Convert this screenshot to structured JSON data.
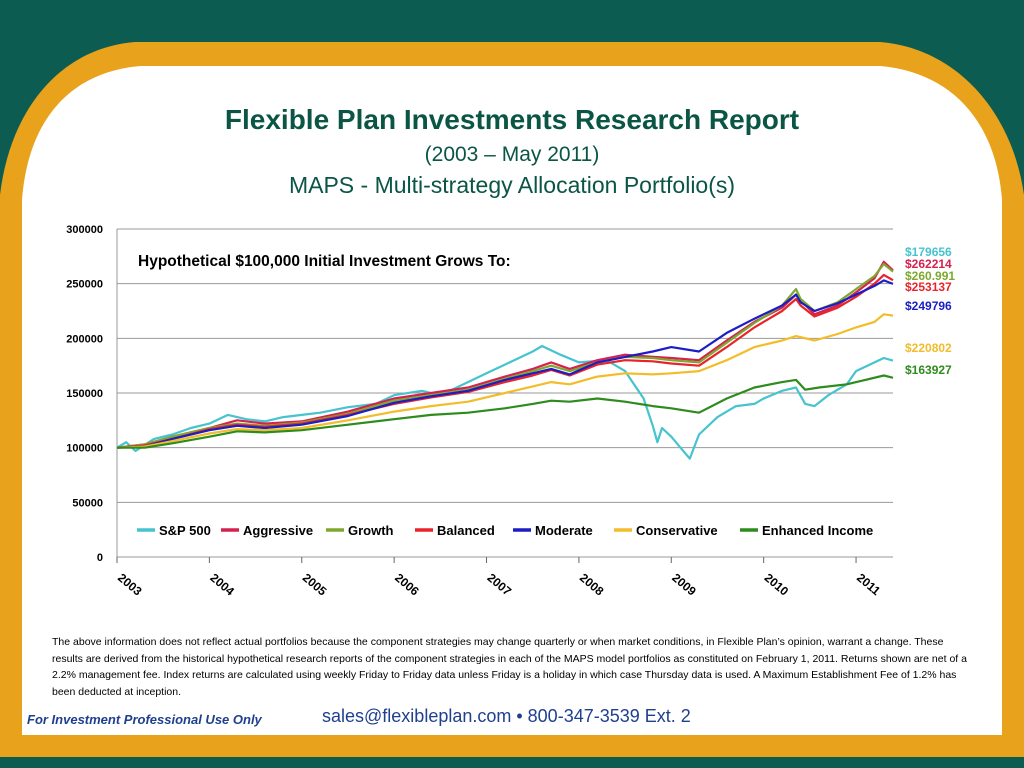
{
  "header": {
    "title": "Flexible Plan Investments Research Report",
    "date_range": "(2003 – May 2011)",
    "subtitle": "MAPS - Multi-strategy Allocation Portfolio(s)"
  },
  "colors": {
    "frame_teal": "#0d5c52",
    "frame_gold": "#e8a21c",
    "text_green": "#0b5545",
    "footer_blue": "#1f3f8f"
  },
  "chart_data": {
    "type": "line",
    "title": "Hypothetical $100,000 Initial Investment Grows To:",
    "x_tick_labels": [
      "2003",
      "2004",
      "2005",
      "2006",
      "2007",
      "2008",
      "2009",
      "2010",
      "2011"
    ],
    "x_range": [
      2003.0,
      2011.4
    ],
    "ylim": [
      0,
      300000
    ],
    "y_ticks": [
      0,
      50000,
      100000,
      150000,
      200000,
      250000,
      300000
    ],
    "grid": true,
    "legend_position": "bottom",
    "series": [
      {
        "name": "S&P 500",
        "color": "#45c4cf",
        "end_label": "$179656",
        "points": [
          [
            2003.0,
            100000
          ],
          [
            2003.1,
            105000
          ],
          [
            2003.2,
            97000
          ],
          [
            2003.4,
            108000
          ],
          [
            2003.6,
            112000
          ],
          [
            2003.8,
            118000
          ],
          [
            2004.0,
            122000
          ],
          [
            2004.2,
            130000
          ],
          [
            2004.4,
            126000
          ],
          [
            2004.6,
            124000
          ],
          [
            2004.8,
            128000
          ],
          [
            2005.0,
            130000
          ],
          [
            2005.2,
            132000
          ],
          [
            2005.5,
            137000
          ],
          [
            2005.8,
            140000
          ],
          [
            2006.0,
            148000
          ],
          [
            2006.3,
            152000
          ],
          [
            2006.5,
            148000
          ],
          [
            2006.8,
            160000
          ],
          [
            2007.0,
            168000
          ],
          [
            2007.3,
            180000
          ],
          [
            2007.5,
            188000
          ],
          [
            2007.6,
            193000
          ],
          [
            2007.8,
            185000
          ],
          [
            2008.0,
            178000
          ],
          [
            2008.3,
            180000
          ],
          [
            2008.5,
            170000
          ],
          [
            2008.7,
            145000
          ],
          [
            2008.8,
            120000
          ],
          [
            2008.85,
            105000
          ],
          [
            2008.9,
            118000
          ],
          [
            2009.0,
            110000
          ],
          [
            2009.1,
            100000
          ],
          [
            2009.2,
            90000
          ],
          [
            2009.3,
            112000
          ],
          [
            2009.5,
            128000
          ],
          [
            2009.7,
            138000
          ],
          [
            2009.9,
            140000
          ],
          [
            2010.0,
            145000
          ],
          [
            2010.2,
            152000
          ],
          [
            2010.35,
            155000
          ],
          [
            2010.45,
            140000
          ],
          [
            2010.55,
            138000
          ],
          [
            2010.7,
            148000
          ],
          [
            2010.9,
            158000
          ],
          [
            2011.0,
            170000
          ],
          [
            2011.2,
            178000
          ],
          [
            2011.3,
            182000
          ],
          [
            2011.4,
            179656
          ]
        ]
      },
      {
        "name": "Aggressive",
        "color": "#d6214f",
        "end_label": "$262214",
        "points": [
          [
            2003.0,
            100000
          ],
          [
            2003.3,
            103000
          ],
          [
            2003.6,
            110000
          ],
          [
            2004.0,
            118000
          ],
          [
            2004.3,
            125000
          ],
          [
            2004.6,
            122000
          ],
          [
            2005.0,
            124000
          ],
          [
            2005.5,
            133000
          ],
          [
            2006.0,
            145000
          ],
          [
            2006.4,
            150000
          ],
          [
            2006.8,
            155000
          ],
          [
            2007.2,
            165000
          ],
          [
            2007.5,
            172000
          ],
          [
            2007.7,
            178000
          ],
          [
            2007.9,
            172000
          ],
          [
            2008.2,
            180000
          ],
          [
            2008.5,
            185000
          ],
          [
            2008.8,
            183000
          ],
          [
            2009.0,
            182000
          ],
          [
            2009.3,
            180000
          ],
          [
            2009.6,
            198000
          ],
          [
            2009.9,
            215000
          ],
          [
            2010.2,
            228000
          ],
          [
            2010.35,
            240000
          ],
          [
            2010.4,
            235000
          ],
          [
            2010.55,
            222000
          ],
          [
            2010.8,
            230000
          ],
          [
            2011.0,
            242000
          ],
          [
            2011.2,
            255000
          ],
          [
            2011.3,
            270000
          ],
          [
            2011.4,
            262214
          ]
        ]
      },
      {
        "name": "Growth",
        "color": "#7ea82d",
        "end_label": "$260.991",
        "points": [
          [
            2003.0,
            100000
          ],
          [
            2003.3,
            103000
          ],
          [
            2003.6,
            110000
          ],
          [
            2004.0,
            118000
          ],
          [
            2004.3,
            122000
          ],
          [
            2004.6,
            120000
          ],
          [
            2005.0,
            123000
          ],
          [
            2005.5,
            131000
          ],
          [
            2006.0,
            143000
          ],
          [
            2006.4,
            148000
          ],
          [
            2006.8,
            153000
          ],
          [
            2007.2,
            163000
          ],
          [
            2007.5,
            170000
          ],
          [
            2007.7,
            175000
          ],
          [
            2007.9,
            170000
          ],
          [
            2008.2,
            178000
          ],
          [
            2008.5,
            183000
          ],
          [
            2008.8,
            182000
          ],
          [
            2009.0,
            180000
          ],
          [
            2009.3,
            178000
          ],
          [
            2009.6,
            196000
          ],
          [
            2009.9,
            214000
          ],
          [
            2010.2,
            230000
          ],
          [
            2010.35,
            245000
          ],
          [
            2010.4,
            236000
          ],
          [
            2010.55,
            225000
          ],
          [
            2010.8,
            233000
          ],
          [
            2011.0,
            245000
          ],
          [
            2011.2,
            257000
          ],
          [
            2011.3,
            268000
          ],
          [
            2011.4,
            260991
          ]
        ]
      },
      {
        "name": "Balanced",
        "color": "#e8242b",
        "end_label": "$253137",
        "points": [
          [
            2003.0,
            100000
          ],
          [
            2003.3,
            102000
          ],
          [
            2003.6,
            108000
          ],
          [
            2004.0,
            117000
          ],
          [
            2004.3,
            121000
          ],
          [
            2004.6,
            119000
          ],
          [
            2005.0,
            122000
          ],
          [
            2005.5,
            130000
          ],
          [
            2006.0,
            140000
          ],
          [
            2006.4,
            146000
          ],
          [
            2006.8,
            151000
          ],
          [
            2007.2,
            160000
          ],
          [
            2007.5,
            166000
          ],
          [
            2007.7,
            171000
          ],
          [
            2007.9,
            166000
          ],
          [
            2008.2,
            176000
          ],
          [
            2008.5,
            180000
          ],
          [
            2008.8,
            179000
          ],
          [
            2009.0,
            177000
          ],
          [
            2009.3,
            175000
          ],
          [
            2009.6,
            192000
          ],
          [
            2009.9,
            210000
          ],
          [
            2010.2,
            225000
          ],
          [
            2010.35,
            236000
          ],
          [
            2010.4,
            230000
          ],
          [
            2010.55,
            220000
          ],
          [
            2010.8,
            228000
          ],
          [
            2011.0,
            238000
          ],
          [
            2011.2,
            250000
          ],
          [
            2011.3,
            258000
          ],
          [
            2011.4,
            253137
          ]
        ]
      },
      {
        "name": "Moderate",
        "color": "#1a1ec4",
        "end_label": "$249796",
        "points": [
          [
            2003.0,
            100000
          ],
          [
            2003.3,
            101000
          ],
          [
            2003.6,
            108000
          ],
          [
            2004.0,
            116000
          ],
          [
            2004.3,
            120000
          ],
          [
            2004.6,
            118000
          ],
          [
            2005.0,
            121000
          ],
          [
            2005.5,
            129000
          ],
          [
            2006.0,
            141000
          ],
          [
            2006.4,
            147000
          ],
          [
            2006.8,
            152000
          ],
          [
            2007.2,
            162000
          ],
          [
            2007.5,
            168000
          ],
          [
            2007.7,
            172000
          ],
          [
            2007.9,
            167000
          ],
          [
            2008.2,
            178000
          ],
          [
            2008.5,
            183000
          ],
          [
            2008.8,
            188000
          ],
          [
            2009.0,
            192000
          ],
          [
            2009.3,
            188000
          ],
          [
            2009.6,
            205000
          ],
          [
            2009.9,
            218000
          ],
          [
            2010.2,
            230000
          ],
          [
            2010.35,
            240000
          ],
          [
            2010.4,
            233000
          ],
          [
            2010.55,
            225000
          ],
          [
            2010.8,
            232000
          ],
          [
            2011.0,
            240000
          ],
          [
            2011.2,
            248000
          ],
          [
            2011.3,
            253000
          ],
          [
            2011.4,
            249796
          ]
        ]
      },
      {
        "name": "Conservative",
        "color": "#f2bc2a",
        "end_label": "$220802",
        "points": [
          [
            2003.0,
            100000
          ],
          [
            2003.3,
            101000
          ],
          [
            2003.6,
            106000
          ],
          [
            2004.0,
            113000
          ],
          [
            2004.3,
            117000
          ],
          [
            2004.6,
            116000
          ],
          [
            2005.0,
            118000
          ],
          [
            2005.5,
            125000
          ],
          [
            2006.0,
            133000
          ],
          [
            2006.4,
            138000
          ],
          [
            2006.8,
            142000
          ],
          [
            2007.2,
            150000
          ],
          [
            2007.5,
            156000
          ],
          [
            2007.7,
            160000
          ],
          [
            2007.9,
            158000
          ],
          [
            2008.2,
            165000
          ],
          [
            2008.5,
            168000
          ],
          [
            2008.8,
            167000
          ],
          [
            2009.0,
            168000
          ],
          [
            2009.3,
            170000
          ],
          [
            2009.6,
            180000
          ],
          [
            2009.9,
            192000
          ],
          [
            2010.2,
            198000
          ],
          [
            2010.35,
            202000
          ],
          [
            2010.55,
            198000
          ],
          [
            2010.8,
            204000
          ],
          [
            2011.0,
            210000
          ],
          [
            2011.2,
            215000
          ],
          [
            2011.3,
            222000
          ],
          [
            2011.4,
            220802
          ]
        ]
      },
      {
        "name": "Enhanced Income",
        "color": "#2e8b1e",
        "end_label": "$163927",
        "points": [
          [
            2003.0,
            100000
          ],
          [
            2003.3,
            100000
          ],
          [
            2003.6,
            104000
          ],
          [
            2004.0,
            110000
          ],
          [
            2004.3,
            115000
          ],
          [
            2004.6,
            114000
          ],
          [
            2005.0,
            116000
          ],
          [
            2005.5,
            121000
          ],
          [
            2006.0,
            126000
          ],
          [
            2006.4,
            130000
          ],
          [
            2006.8,
            132000
          ],
          [
            2007.2,
            136000
          ],
          [
            2007.5,
            140000
          ],
          [
            2007.7,
            143000
          ],
          [
            2007.9,
            142000
          ],
          [
            2008.2,
            145000
          ],
          [
            2008.5,
            142000
          ],
          [
            2008.8,
            138000
          ],
          [
            2009.0,
            136000
          ],
          [
            2009.3,
            132000
          ],
          [
            2009.6,
            145000
          ],
          [
            2009.9,
            155000
          ],
          [
            2010.2,
            160000
          ],
          [
            2010.35,
            162000
          ],
          [
            2010.45,
            153000
          ],
          [
            2010.6,
            155000
          ],
          [
            2010.9,
            158000
          ],
          [
            2011.1,
            162000
          ],
          [
            2011.3,
            166000
          ],
          [
            2011.4,
            163927
          ]
        ]
      }
    ]
  },
  "disclaimer": "The above information does not reflect actual portfolios because the component strategies may change quarterly or when market conditions, in Flexible Plan’s opinion, warrant a change.  These results are derived from the historical hypothetical research reports of  the component strategies in each of the MAPS model portfolios as constituted on February 1, 2011. Returns shown are net of a 2.2% management fee. Index returns are calculated using weekly Friday to Friday data unless Friday is a holiday in which case Thursday data is used. A Maximum Establishment Fee of 1.2% has been deducted at inception.",
  "footer": {
    "professional_use": "For Investment Professional Use Only",
    "contact": "sales@flexibleplan.com  • 800-347-3539 Ext. 2"
  }
}
